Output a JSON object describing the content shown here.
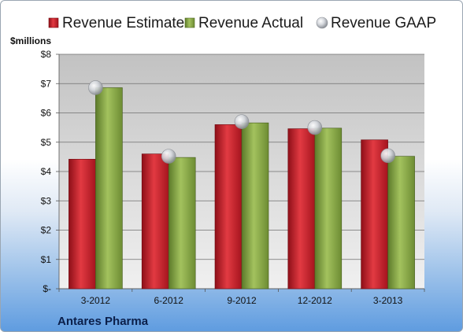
{
  "company": "Antares Pharma",
  "chart_data": {
    "type": "bar",
    "categories": [
      "3-2012",
      "6-2012",
      "9-2012",
      "12-2012",
      "3-2013"
    ],
    "series": [
      {
        "name": "Revenue Estimate",
        "kind": "bar",
        "color": "#c8202a",
        "values": [
          4.42,
          4.6,
          5.6,
          5.46,
          5.08
        ]
      },
      {
        "name": "Revenue Actual",
        "kind": "bar",
        "color": "#8aa84a",
        "values": [
          6.86,
          4.48,
          5.66,
          5.48,
          4.52
        ]
      },
      {
        "name": "Revenue GAAP",
        "kind": "marker",
        "color": "#c8ccd2",
        "values": [
          6.86,
          4.52,
          5.7,
          5.5,
          4.54
        ]
      }
    ],
    "ylabel": "$millions",
    "ylim": [
      0,
      8
    ],
    "yticks": [
      0,
      1,
      2,
      3,
      4,
      5,
      6,
      7,
      8
    ],
    "ytick_labels": [
      "$-",
      "$1",
      "$2",
      "$3",
      "$4",
      "$5",
      "$6",
      "$7",
      "$8"
    ],
    "grid": true,
    "legend_position": "top"
  }
}
